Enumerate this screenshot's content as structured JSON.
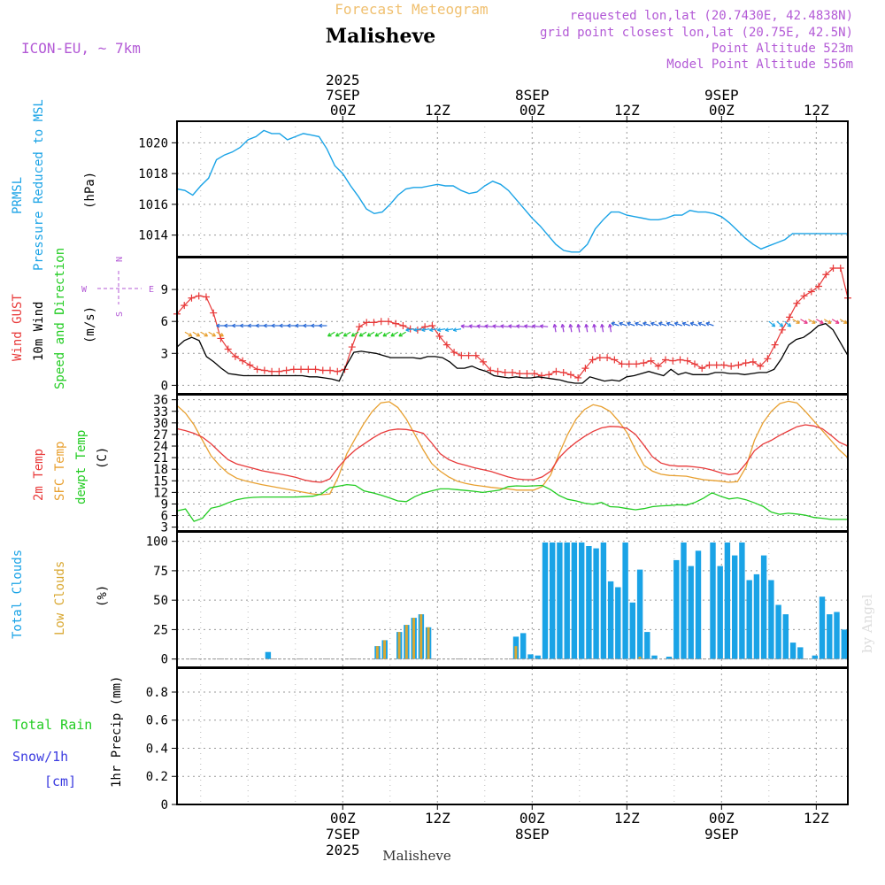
{
  "header": {
    "super_title": "Forecast Meteogram",
    "location": "Malisheve",
    "model": "ICON-EU, ~ 7km",
    "requested": "requested lon,lat (20.7430E, 42.4838N)",
    "gridpoint": "grid point closest lon,lat (20.75E, 42.5N)",
    "point_alt": "Point Altitude 523m",
    "model_alt": "Model Point Altitude 556m",
    "footer_location": "Malisheve",
    "watermark": "by Angel"
  },
  "colors": {
    "pressure": "#1aa3e6",
    "gust": "#e83a3a",
    "wind": "#000000",
    "temp2m": "#e83a3a",
    "sfc": "#e8a030",
    "dewpt": "#22cc22",
    "clouds": "#1aa3e6",
    "low_clouds": "#d9a832",
    "title_purple": "#b35ad6",
    "frame": "#000000"
  },
  "time_axis": {
    "top": [
      {
        "t": 21,
        "lines": [
          "2025",
          "7SEP",
          "00Z"
        ]
      },
      {
        "t": 33,
        "lines": [
          "12Z"
        ]
      },
      {
        "t": 45,
        "lines": [
          "8SEP",
          "00Z"
        ]
      },
      {
        "t": 57,
        "lines": [
          "12Z"
        ]
      },
      {
        "t": 69,
        "lines": [
          "9SEP",
          "00Z"
        ]
      },
      {
        "t": 81,
        "lines": [
          "12Z"
        ]
      }
    ],
    "bottom": [
      {
        "t": 21,
        "lines": [
          "00Z",
          "7SEP",
          "2025"
        ]
      },
      {
        "t": 33,
        "lines": [
          "12Z"
        ]
      },
      {
        "t": 45,
        "lines": [
          "00Z",
          "8SEP"
        ]
      },
      {
        "t": 57,
        "lines": [
          "12Z"
        ]
      },
      {
        "t": 69,
        "lines": [
          "00Z",
          "9SEP"
        ]
      },
      {
        "t": 81,
        "lines": [
          "12Z"
        ]
      }
    ]
  },
  "panels": {
    "pressure": {
      "labels": [
        "PRMSL",
        "Pressure Reduced to MSL"
      ],
      "unit": "(hPa)",
      "ticks": [
        "1014",
        "1016",
        "1018",
        "1020"
      ]
    },
    "wind": {
      "labels": [
        "Wind GUST",
        "10m Wind",
        "Speed and Direction"
      ],
      "unit": "(m/s)",
      "ticks": [
        "0",
        "3",
        "6",
        "9"
      ],
      "compass": {
        "n": "N",
        "s": "S",
        "w": "W",
        "e": "E"
      }
    },
    "temp": {
      "labels": [
        "2m Temp",
        "SFC Temp",
        "dewpt Temp"
      ],
      "unit": "(C)",
      "ticks": [
        "3",
        "6",
        "9",
        "12",
        "15",
        "18",
        "21",
        "24",
        "27",
        "30",
        "33",
        "36"
      ]
    },
    "clouds": {
      "labels": [
        "Total Clouds",
        "Low Clouds"
      ],
      "unit": "(%)",
      "ticks": [
        "0",
        "25",
        "50",
        "75",
        "100"
      ]
    },
    "precip": {
      "labels": [
        "Total Rain",
        "Snow/1h",
        "[cm]"
      ],
      "unit": "1hr Precip (mm)",
      "ticks": [
        "0",
        "0.2",
        "0.4",
        "0.6",
        "0.8"
      ]
    }
  },
  "chart_data": {
    "type": "line",
    "title": "Forecast Meteogram Malisheve",
    "x_units": "hours since 2025-09-06 03Z",
    "x_range": [
      0,
      85
    ],
    "pressure": {
      "name": "PRMSL",
      "ylim": [
        1012.6,
        1021.4
      ],
      "x": [
        0,
        1,
        2,
        3,
        4,
        5,
        6,
        7,
        8,
        9,
        10,
        11,
        12,
        13,
        14,
        15,
        16,
        17,
        18,
        19,
        20,
        21,
        22,
        23,
        24,
        25,
        26,
        27,
        28,
        29,
        30,
        31,
        32,
        33,
        34,
        35,
        36,
        37,
        38,
        39,
        40,
        41,
        42,
        43,
        44,
        45,
        46,
        47,
        48,
        49,
        50,
        51,
        52,
        53,
        54,
        55,
        56,
        57,
        58,
        59,
        60,
        61,
        62,
        63,
        64,
        65,
        66,
        67,
        68,
        69,
        70,
        71,
        72,
        73,
        74,
        75,
        76,
        77,
        78,
        79,
        80,
        81,
        82,
        83,
        84,
        85
      ],
      "values": [
        1017.0,
        1016.9,
        1016.6,
        1017.2,
        1017.7,
        1018.9,
        1019.2,
        1019.4,
        1019.7,
        1020.2,
        1020.4,
        1020.8,
        1020.6,
        1020.6,
        1020.2,
        1020.4,
        1020.6,
        1020.5,
        1020.4,
        1019.6,
        1018.5,
        1018.0,
        1017.2,
        1016.5,
        1015.7,
        1015.4,
        1015.5,
        1016.0,
        1016.6,
        1017.0,
        1017.1,
        1017.1,
        1017.2,
        1017.3,
        1017.2,
        1017.2,
        1016.9,
        1016.7,
        1016.8,
        1017.2,
        1017.5,
        1017.3,
        1016.9,
        1016.3,
        1015.7,
        1015.1,
        1014.6,
        1014.0,
        1013.4,
        1013.0,
        1012.9,
        1012.9,
        1013.4,
        1014.4,
        1015.0,
        1015.5,
        1015.5,
        1015.3,
        1015.2,
        1015.1,
        1015.0,
        1015.0,
        1015.1,
        1015.3,
        1015.3,
        1015.6,
        1015.5,
        1015.5,
        1015.4,
        1015.2,
        1014.8,
        1014.3,
        1013.8,
        1013.4,
        1013.1,
        1013.3,
        1013.5,
        1013.7,
        1014.1,
        1014.1,
        1014.1,
        1014.1,
        1014.1,
        1014.1,
        1014.1,
        1014.1
      ]
    },
    "wind_gust": {
      "name": "Wind GUST",
      "ylim": [
        -0.8,
        12
      ],
      "values": [
        6.7,
        7.5,
        8.2,
        8.4,
        8.3,
        6.8,
        4.4,
        3.4,
        2.7,
        2.3,
        1.9,
        1.5,
        1.4,
        1.3,
        1.3,
        1.4,
        1.5,
        1.5,
        1.5,
        1.5,
        1.4,
        1.4,
        1.3,
        1.5,
        3.6,
        5.5,
        5.9,
        5.9,
        6.0,
        6.0,
        5.8,
        5.6,
        5.3,
        5.2,
        5.5,
        5.6,
        4.6,
        3.8,
        3.1,
        2.8,
        2.8,
        2.8,
        2.2,
        1.4,
        1.3,
        1.2,
        1.2,
        1.1,
        1.1,
        1.1,
        0.9,
        1.0,
        1.3,
        1.2,
        1.0,
        0.7,
        1.6,
        2.4,
        2.6,
        2.6,
        2.4,
        2.0,
        2.0,
        2.0,
        2.1,
        2.3,
        1.8,
        2.4,
        2.3,
        2.4,
        2.3,
        2.0,
        1.6,
        1.9,
        1.9,
        1.9,
        1.8,
        1.9,
        2.1,
        2.2,
        1.8,
        2.5,
        3.8,
        5.2,
        6.4,
        7.7,
        8.4,
        8.8,
        9.3,
        10.4,
        11.0,
        11.0,
        8.2
      ]
    },
    "wind_speed": {
      "name": "10m Wind",
      "ylim": [
        -0.8,
        12
      ],
      "values": [
        3.6,
        4.2,
        4.5,
        4.2,
        2.7,
        2.2,
        1.6,
        1.1,
        1.0,
        0.9,
        0.9,
        0.9,
        0.9,
        0.9,
        0.9,
        0.9,
        0.9,
        0.9,
        0.8,
        0.8,
        0.7,
        0.6,
        0.4,
        1.9,
        3.1,
        3.2,
        3.1,
        3.0,
        2.8,
        2.6,
        2.6,
        2.6,
        2.6,
        2.5,
        2.7,
        2.7,
        2.6,
        2.2,
        1.6,
        1.6,
        1.8,
        1.5,
        1.3,
        0.9,
        0.8,
        0.7,
        0.8,
        0.7,
        0.7,
        0.8,
        0.7,
        0.6,
        0.5,
        0.3,
        0.2,
        0.2,
        0.8,
        0.6,
        0.4,
        0.5,
        0.4,
        0.8,
        0.9,
        1.1,
        1.3,
        1.1,
        0.9,
        1.5,
        1.0,
        1.2,
        1.0,
        1.0,
        1.0,
        1.2,
        1.2,
        1.1,
        1.1,
        1.0,
        1.1,
        1.2,
        1.2,
        1.5,
        2.5,
        3.8,
        4.3,
        4.5,
        5.0,
        5.6,
        5.8,
        5.2,
        4.0,
        2.8
      ]
    },
    "temp_2m": {
      "name": "2m Temp",
      "ylim": [
        2,
        37.3
      ],
      "values": [
        28.5,
        28.0,
        27.3,
        26.3,
        24.6,
        22.5,
        20.5,
        19.4,
        18.8,
        18.2,
        17.6,
        17.2,
        16.8,
        16.4,
        15.9,
        15.2,
        14.8,
        14.6,
        15.5,
        18.5,
        21.0,
        23.0,
        24.5,
        26.0,
        27.3,
        28.1,
        28.4,
        28.3,
        27.9,
        27.3,
        24.8,
        22.0,
        20.5,
        19.6,
        19.0,
        18.4,
        17.9,
        17.4,
        16.7,
        16.0,
        15.5,
        15.3,
        15.3,
        16.0,
        17.5,
        21.0,
        23.2,
        25.0,
        26.5,
        27.8,
        28.7,
        29.1,
        29.0,
        28.6,
        27.0,
        24.2,
        21.2,
        19.6,
        19.0,
        18.8,
        18.8,
        18.6,
        18.3,
        17.8,
        17.1,
        16.6,
        16.9,
        19.5,
        22.8,
        24.5,
        25.5,
        26.8,
        27.9,
        29.0,
        29.5,
        29.2,
        28.5,
        26.8,
        25.0,
        24.0
      ]
    },
    "temp_sfc": {
      "name": "SFC Temp",
      "ylim": [
        2,
        37.3
      ],
      "values": [
        34.5,
        32.5,
        29.5,
        25.5,
        21.5,
        19.0,
        17.0,
        15.7,
        15.0,
        14.5,
        14.0,
        13.6,
        13.2,
        12.8,
        12.4,
        12.0,
        11.6,
        11.4,
        11.6,
        16.0,
        22.0,
        26.0,
        29.8,
        33.0,
        35.2,
        35.5,
        34.0,
        31.0,
        27.0,
        23.0,
        19.5,
        17.5,
        16.0,
        14.9,
        14.3,
        13.9,
        13.6,
        13.3,
        13.1,
        12.9,
        12.6,
        12.6,
        12.6,
        13.5,
        16.5,
        22.0,
        27.0,
        31.0,
        33.5,
        34.7,
        34.2,
        33.0,
        30.5,
        27.5,
        23.0,
        19.0,
        17.5,
        16.7,
        16.4,
        16.3,
        16.2,
        15.7,
        15.3,
        15.1,
        14.9,
        14.6,
        14.8,
        18.5,
        25.5,
        30.0,
        33.0,
        35.0,
        35.6,
        35.2,
        33.0,
        30.5,
        28.0,
        25.5,
        23.0,
        21.0
      ]
    },
    "temp_dewpt": {
      "name": "dewpt Temp",
      "ylim": [
        2,
        37.3
      ],
      "values": [
        7.2,
        7.7,
        4.5,
        5.3,
        7.9,
        8.4,
        9.3,
        10.1,
        10.5,
        10.7,
        10.8,
        10.8,
        10.8,
        10.8,
        10.8,
        10.9,
        11.0,
        11.6,
        13.2,
        13.6,
        14.0,
        13.8,
        12.4,
        11.9,
        11.3,
        10.6,
        9.8,
        9.6,
        10.9,
        11.8,
        12.4,
        12.9,
        12.9,
        12.7,
        12.5,
        12.3,
        12.0,
        12.3,
        12.6,
        13.5,
        13.7,
        13.6,
        13.7,
        13.8,
        12.7,
        11.2,
        10.2,
        9.8,
        9.2,
        8.9,
        9.4,
        8.3,
        8.2,
        7.8,
        7.5,
        7.8,
        8.3,
        8.5,
        8.6,
        8.8,
        8.7,
        9.4,
        10.5,
        11.9,
        11.0,
        10.3,
        10.6,
        10.1,
        9.3,
        8.4,
        6.9,
        6.3,
        6.6,
        6.4,
        6.1,
        5.5,
        5.3,
        5.0,
        5.0,
        5.0
      ]
    },
    "clouds": {
      "categories_start": 0,
      "ylim": [
        -7,
        108
      ],
      "total": [
        0,
        0,
        0,
        0,
        0,
        0,
        0,
        0,
        0,
        0,
        0,
        0,
        6,
        0,
        0,
        0,
        0,
        0,
        0,
        0,
        0,
        0,
        0,
        0,
        0,
        0,
        0,
        11,
        16,
        0,
        23,
        29,
        35,
        38,
        27,
        0,
        0,
        0,
        0,
        0,
        0,
        0,
        0,
        0,
        0,
        0,
        19,
        22,
        4,
        3,
        99,
        99,
        99,
        99,
        99,
        99,
        96,
        94,
        99,
        66,
        61,
        99,
        48,
        76,
        23,
        3,
        0,
        2,
        84,
        99,
        79,
        92,
        0,
        99,
        79,
        99,
        88,
        99,
        67,
        72,
        88,
        67,
        46,
        38,
        14,
        10,
        0,
        3,
        53,
        38,
        40,
        25
      ],
      "low": [
        0,
        0,
        0,
        0,
        0,
        0,
        0,
        0,
        0,
        0,
        0,
        0,
        0,
        0,
        0,
        0,
        0,
        0,
        0,
        0,
        0,
        0,
        0,
        0,
        0,
        0,
        0,
        11,
        16,
        0,
        23,
        29,
        35,
        38,
        27,
        0,
        0,
        0,
        0,
        0,
        0,
        0,
        0,
        0,
        0,
        0,
        11,
        0,
        0,
        0,
        0,
        0,
        0,
        0,
        0,
        0,
        0,
        0,
        0,
        0,
        0,
        0,
        0,
        2,
        0,
        0,
        0,
        0,
        0,
        0,
        0,
        0,
        0,
        0,
        0,
        0,
        0,
        0,
        0,
        0,
        0,
        0,
        0,
        0,
        0,
        0,
        0,
        0,
        0,
        0,
        0,
        0
      ]
    },
    "precip": {
      "name": "1hr Precip",
      "ylim": [
        0,
        0.97
      ],
      "values": [
        0,
        0,
        0,
        0,
        0,
        0,
        0,
        0,
        0,
        0,
        0,
        0,
        0,
        0,
        0,
        0,
        0,
        0,
        0,
        0,
        0,
        0,
        0,
        0,
        0,
        0,
        0,
        0,
        0,
        0,
        0,
        0,
        0,
        0,
        0,
        0,
        0,
        0,
        0,
        0,
        0,
        0,
        0,
        0,
        0,
        0,
        0,
        0,
        0,
        0,
        0,
        0,
        0,
        0,
        0,
        0,
        0,
        0,
        0,
        0,
        0,
        0,
        0,
        0,
        0,
        0,
        0,
        0,
        0,
        0,
        0,
        0,
        0,
        0,
        0,
        0,
        0,
        0,
        0,
        0,
        0,
        0,
        0,
        0,
        0,
        0
      ]
    }
  }
}
